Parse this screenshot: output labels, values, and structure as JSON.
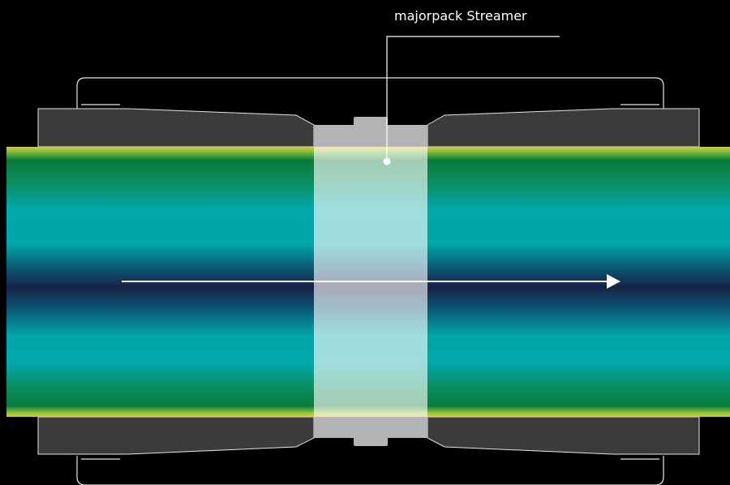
{
  "callout": {
    "label": "majorpack Streamer"
  },
  "flow": {
    "direction": "right",
    "icon": "arrow-right-icon"
  },
  "colors": {
    "background": "#000000",
    "pipe_edge": "#f2c21b",
    "pipe_green": "#0a7a3a",
    "pipe_teal": "#00a8a8",
    "pipe_navy": "#162348",
    "clamp_fill": "#3b3b3b",
    "band_fill": "#b4b4b4",
    "line": "#ffffff"
  }
}
